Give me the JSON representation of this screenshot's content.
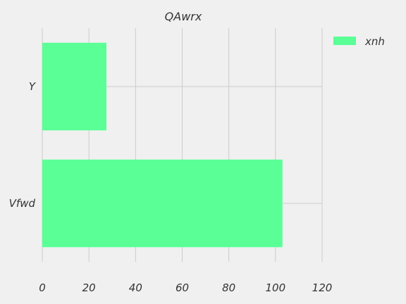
{
  "chart_data": {
    "type": "bar",
    "orientation": "horizontal",
    "title": "QAwrx",
    "xlabel": "",
    "ylabel": "",
    "categories": [
      "Vfwd",
      "Y"
    ],
    "series": [
      {
        "name": "xnh",
        "values": [
          103,
          27.5
        ]
      }
    ],
    "xlim": [
      0,
      120
    ],
    "xticks": [
      "0",
      "20",
      "40",
      "60",
      "80",
      "100",
      "120"
    ],
    "grid": true,
    "legend_position": "top-right"
  },
  "colors": {
    "background": "#f0f0f0",
    "bar": "#5aff96",
    "grid": "#cbcbcb",
    "text": "#333333"
  }
}
